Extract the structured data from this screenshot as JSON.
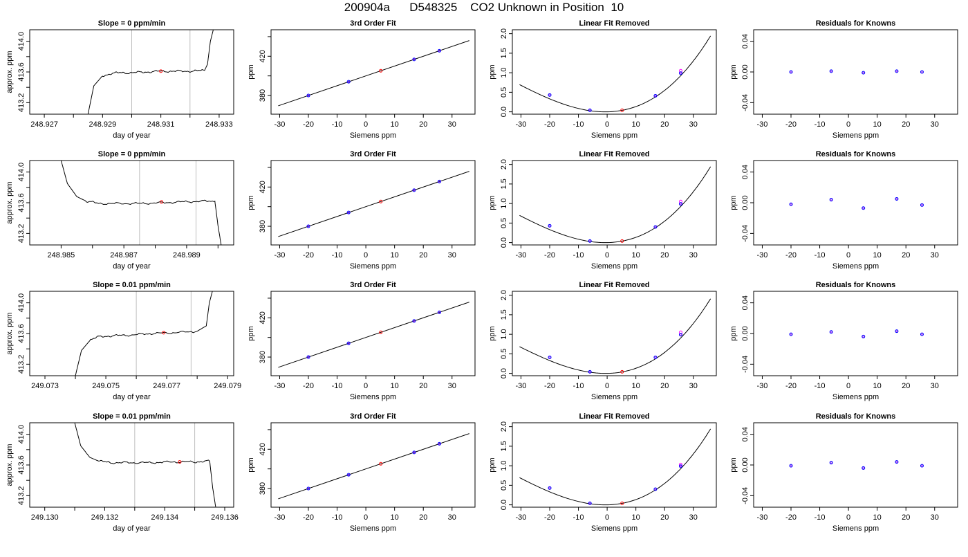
{
  "figure": {
    "suptitle": "200904a      D548325    CO2 Unknown in Position  10"
  },
  "chart_data": [
    {
      "type": "line",
      "row": 1,
      "title": "Slope =  0  ppm/min",
      "xlabel": "day of year",
      "ylabel": "approx. ppm",
      "xlim": [
        248.9265,
        248.9335
      ],
      "ylim": [
        413.05,
        414.15
      ],
      "xticks": [
        248.927,
        248.928,
        248.929,
        248.93,
        248.931,
        248.932,
        248.933
      ],
      "xtick_labels": [
        "248.927",
        "",
        "248.929",
        "",
        "248.931",
        "",
        "248.933"
      ],
      "yticks": [
        413.2,
        413.4,
        413.6,
        413.8,
        414.0
      ],
      "ytick_labels": [
        "413.2",
        "",
        "413.6",
        "",
        "414.0"
      ],
      "vlines": [
        248.93,
        248.932
      ],
      "trace_x": [
        248.9285,
        248.9287,
        248.929,
        248.9293,
        248.9296,
        248.93,
        248.9305,
        248.931,
        248.9315,
        248.932,
        248.9325,
        248.9326,
        248.9327,
        248.9328
      ],
      "trace_y": [
        413.05,
        413.42,
        413.55,
        413.58,
        413.59,
        413.59,
        413.6,
        413.61,
        413.61,
        413.61,
        413.62,
        413.7,
        414.0,
        414.15
      ],
      "marker": {
        "x": 248.931,
        "y": 413.61
      }
    },
    {
      "type": "scatter",
      "row": 1,
      "title": "3rd Order Fit",
      "xlabel": "Siemens ppm",
      "ylabel": "ppm",
      "xlim": [
        -33,
        38
      ],
      "ylim": [
        361,
        447
      ],
      "xticks": [
        -30,
        -20,
        -10,
        0,
        10,
        20,
        30
      ],
      "xtick_labels": [
        "-30",
        "-20",
        "-10",
        "0",
        "10",
        "20",
        "30"
      ],
      "yticks": [
        380,
        400,
        420,
        440
      ],
      "ytick_labels": [
        "380",
        "",
        "420",
        ""
      ],
      "fit_line": {
        "slope": 1.0,
        "intercept": 400,
        "xrange": [
          -30.5,
          36
        ]
      },
      "points_knowns": [
        {
          "x": -20,
          "y": 380
        },
        {
          "x": -6,
          "y": 394
        },
        {
          "x": 16.8,
          "y": 416.8
        },
        {
          "x": 25.6,
          "y": 425.6
        }
      ],
      "point_unknown": {
        "x": 5.2,
        "y": 405.2
      }
    },
    {
      "type": "scatter",
      "row": 1,
      "title": "Linear Fit Removed",
      "xlabel": "Siemens ppm",
      "ylabel": "ppm",
      "xlim": [
        -33,
        38
      ],
      "ylim": [
        -0.06,
        2.1
      ],
      "xticks": [
        -30,
        -20,
        -10,
        0,
        10,
        20,
        30
      ],
      "xtick_labels": [
        "-30",
        "-20",
        "-10",
        "0",
        "10",
        "20",
        "30"
      ],
      "yticks": [
        0,
        0.5,
        1.0,
        1.5,
        2.0
      ],
      "ytick_labels": [
        "0.0",
        "0.5",
        "1.0",
        "1.5",
        "2.0"
      ],
      "curve": {
        "a": 0.0011,
        "b": 0.0014,
        "c": 1e-05,
        "xrange": [
          -30.5,
          36
        ]
      },
      "points_knowns": [
        {
          "x": -20,
          "y": 0.43
        },
        {
          "x": -6,
          "y": 0.04
        },
        {
          "x": 16.8,
          "y": 0.41
        },
        {
          "x": 25.6,
          "y": 0.99
        }
      ],
      "points_pink": [
        {
          "x": 25.6,
          "y": 1.05
        }
      ],
      "point_unknown": {
        "x": 5.2,
        "y": 0.04
      }
    },
    {
      "type": "scatter",
      "row": 1,
      "title": "Residuals for Knowns",
      "xlabel": "Siemens ppm",
      "ylabel": "ppm",
      "xlim": [
        -33,
        38
      ],
      "ylim": [
        -0.055,
        0.055
      ],
      "xticks": [
        -30,
        -20,
        -10,
        0,
        10,
        20,
        30
      ],
      "xtick_labels": [
        "-30",
        "-20",
        "-10",
        "0",
        "10",
        "20",
        "30"
      ],
      "yticks": [
        -0.04,
        0,
        0.04
      ],
      "ytick_labels": [
        "-0.04",
        "0.00",
        "0.04"
      ],
      "points_knowns": [
        {
          "x": -20,
          "y": 0.0
        },
        {
          "x": -6,
          "y": 0.001
        },
        {
          "x": 5.2,
          "y": -0.001
        },
        {
          "x": 16.8,
          "y": 0.001
        },
        {
          "x": 25.6,
          "y": 0.0
        }
      ]
    },
    {
      "type": "line",
      "row": 2,
      "title": "Slope =  0  ppm/min",
      "xlabel": "day of year",
      "ylabel": "approx. ppm",
      "xlim": [
        248.984,
        248.9905
      ],
      "ylim": [
        413.05,
        414.15
      ],
      "xticks": [
        248.985,
        248.986,
        248.987,
        248.988,
        248.989,
        248.99
      ],
      "xtick_labels": [
        "248.985",
        "",
        "248.987",
        "",
        "248.989",
        ""
      ],
      "yticks": [
        413.2,
        413.4,
        413.6,
        413.8,
        414.0
      ],
      "ytick_labels": [
        "413.2",
        "",
        "413.6",
        "",
        "414.0"
      ],
      "vlines": [
        248.9875,
        248.9893
      ],
      "trace_x": [
        248.985,
        248.9852,
        248.9855,
        248.9858,
        248.9862,
        248.9868,
        248.9875,
        248.9882,
        248.9888,
        248.9895,
        248.9899,
        248.99,
        248.9901
      ],
      "trace_y": [
        414.15,
        413.85,
        413.68,
        413.62,
        413.59,
        413.59,
        413.59,
        413.6,
        413.61,
        413.62,
        413.62,
        413.3,
        413.05
      ],
      "marker": {
        "x": 248.9882,
        "y": 413.61
      }
    },
    {
      "type": "scatter",
      "row": 2,
      "title": "3rd Order Fit",
      "xlabel": "Siemens ppm",
      "ylabel": "ppm",
      "xlim": [
        -33,
        38
      ],
      "ylim": [
        361,
        447
      ],
      "xticks": [
        -30,
        -20,
        -10,
        0,
        10,
        20,
        30
      ],
      "xtick_labels": [
        "-30",
        "-20",
        "-10",
        "0",
        "10",
        "20",
        "30"
      ],
      "yticks": [
        380,
        400,
        420,
        440
      ],
      "ytick_labels": [
        "380",
        "",
        "420",
        ""
      ],
      "fit_line": {
        "slope": 1.0,
        "intercept": 400,
        "xrange": [
          -30.5,
          36
        ]
      },
      "points_knowns": [
        {
          "x": -20,
          "y": 380
        },
        {
          "x": -6,
          "y": 394
        },
        {
          "x": 16.8,
          "y": 416.8
        },
        {
          "x": 25.6,
          "y": 425.6
        }
      ],
      "point_unknown": {
        "x": 5.2,
        "y": 405.2
      }
    },
    {
      "type": "scatter",
      "row": 2,
      "title": "Linear Fit Removed",
      "xlabel": "Siemens ppm",
      "ylabel": "ppm",
      "xlim": [
        -33,
        38
      ],
      "ylim": [
        -0.06,
        2.1
      ],
      "xticks": [
        -30,
        -20,
        -10,
        0,
        10,
        20,
        30
      ],
      "xtick_labels": [
        "-30",
        "-20",
        "-10",
        "0",
        "10",
        "20",
        "30"
      ],
      "yticks": [
        0,
        0.5,
        1.0,
        1.5,
        2.0
      ],
      "ytick_labels": [
        "0.0",
        "0.5",
        "1.0",
        "1.5",
        "2.0"
      ],
      "curve": {
        "a": 0.0011,
        "b": 0.0014,
        "c": 1e-05,
        "xrange": [
          -30.5,
          36
        ]
      },
      "points_knowns": [
        {
          "x": -20,
          "y": 0.43
        },
        {
          "x": -6,
          "y": 0.04
        },
        {
          "x": 16.8,
          "y": 0.4
        },
        {
          "x": 25.6,
          "y": 0.99
        }
      ],
      "points_pink": [
        {
          "x": 25.6,
          "y": 1.05
        }
      ],
      "point_unknown": {
        "x": 5.2,
        "y": 0.04
      }
    },
    {
      "type": "scatter",
      "row": 2,
      "title": "Residuals for Knowns",
      "xlabel": "Siemens ppm",
      "ylabel": "ppm",
      "xlim": [
        -33,
        38
      ],
      "ylim": [
        -0.055,
        0.055
      ],
      "xticks": [
        -30,
        -20,
        -10,
        0,
        10,
        20,
        30
      ],
      "xtick_labels": [
        "-30",
        "-20",
        "-10",
        "0",
        "10",
        "20",
        "30"
      ],
      "yticks": [
        -0.04,
        0,
        0.04
      ],
      "ytick_labels": [
        "-0.04",
        "0.00",
        "0.04"
      ],
      "points_knowns": [
        {
          "x": -20,
          "y": -0.002
        },
        {
          "x": -6,
          "y": 0.004
        },
        {
          "x": 5.2,
          "y": -0.007
        },
        {
          "x": 16.8,
          "y": 0.005
        },
        {
          "x": 25.6,
          "y": -0.003
        }
      ]
    },
    {
      "type": "line",
      "row": 3,
      "title": "Slope =  0.01  ppm/min",
      "xlabel": "day of year",
      "ylabel": "approx. ppm",
      "xlim": [
        249.0725,
        249.0792
      ],
      "ylim": [
        413.05,
        414.15
      ],
      "xticks": [
        249.073,
        249.074,
        249.075,
        249.076,
        249.077,
        249.078,
        249.079
      ],
      "xtick_labels": [
        "249.073",
        "",
        "249.075",
        "",
        "249.077",
        "",
        "249.079"
      ],
      "yticks": [
        413.2,
        413.4,
        413.6,
        413.8,
        414.0
      ],
      "ytick_labels": [
        "413.2",
        "",
        "413.6",
        "",
        "414.0"
      ],
      "vlines": [
        249.076,
        249.0778
      ],
      "trace_x": [
        249.074,
        249.0742,
        249.0745,
        249.0748,
        249.0752,
        249.0758,
        249.0765,
        249.0772,
        249.078,
        249.0783,
        249.0784,
        249.0785
      ],
      "trace_y": [
        413.05,
        413.38,
        413.52,
        413.56,
        413.57,
        413.58,
        413.6,
        413.61,
        413.63,
        413.7,
        414.0,
        414.15
      ],
      "marker": {
        "x": 249.0769,
        "y": 413.61
      }
    },
    {
      "type": "scatter",
      "row": 3,
      "title": "3rd Order Fit",
      "xlabel": "Siemens ppm",
      "ylabel": "ppm",
      "xlim": [
        -33,
        38
      ],
      "ylim": [
        361,
        447
      ],
      "xticks": [
        -30,
        -20,
        -10,
        0,
        10,
        20,
        30
      ],
      "xtick_labels": [
        "-30",
        "-20",
        "-10",
        "0",
        "10",
        "20",
        "30"
      ],
      "yticks": [
        380,
        400,
        420,
        440
      ],
      "ytick_labels": [
        "380",
        "",
        "420",
        ""
      ],
      "fit_line": {
        "slope": 1.0,
        "intercept": 400,
        "xrange": [
          -30.5,
          36
        ]
      },
      "points_knowns": [
        {
          "x": -20,
          "y": 380
        },
        {
          "x": -6,
          "y": 394
        },
        {
          "x": 16.8,
          "y": 416.8
        },
        {
          "x": 25.6,
          "y": 425.6
        }
      ],
      "point_unknown": {
        "x": 5.2,
        "y": 405.2
      }
    },
    {
      "type": "scatter",
      "row": 3,
      "title": "Linear Fit Removed",
      "xlabel": "Siemens ppm",
      "ylabel": "ppm",
      "xlim": [
        -33,
        38
      ],
      "ylim": [
        -0.06,
        2.1
      ],
      "xticks": [
        -30,
        -20,
        -10,
        0,
        10,
        20,
        30
      ],
      "xtick_labels": [
        "-30",
        "-20",
        "-10",
        "0",
        "10",
        "20",
        "30"
      ],
      "yticks": [
        0,
        0.5,
        1.0,
        1.5,
        2.0
      ],
      "ytick_labels": [
        "0.0",
        "0.5",
        "1.0",
        "1.5",
        "2.0"
      ],
      "curve": {
        "a": 0.00108,
        "b": 0.0012,
        "c": 1e-05,
        "xrange": [
          -30.5,
          36
        ]
      },
      "points_knowns": [
        {
          "x": -20,
          "y": 0.41
        },
        {
          "x": -6,
          "y": 0.04
        },
        {
          "x": 16.8,
          "y": 0.41
        },
        {
          "x": 25.6,
          "y": 0.99
        }
      ],
      "points_pink": [
        {
          "x": 25.6,
          "y": 1.05
        }
      ],
      "point_unknown": {
        "x": 5.2,
        "y": 0.04
      }
    },
    {
      "type": "scatter",
      "row": 3,
      "title": "Residuals for Knowns",
      "xlabel": "Siemens ppm",
      "ylabel": "ppm",
      "xlim": [
        -33,
        38
      ],
      "ylim": [
        -0.055,
        0.055
      ],
      "xticks": [
        -30,
        -20,
        -10,
        0,
        10,
        20,
        30
      ],
      "xtick_labels": [
        "-30",
        "-20",
        "-10",
        "0",
        "10",
        "20",
        "30"
      ],
      "yticks": [
        -0.04,
        0,
        0.04
      ],
      "ytick_labels": [
        "-0.04",
        "0.00",
        "0.04"
      ],
      "points_knowns": [
        {
          "x": -20,
          "y": -0.001
        },
        {
          "x": -6,
          "y": 0.002
        },
        {
          "x": 5.2,
          "y": -0.004
        },
        {
          "x": 16.8,
          "y": 0.003
        },
        {
          "x": 25.6,
          "y": -0.001
        }
      ]
    },
    {
      "type": "line",
      "row": 4,
      "title": "Slope =  0.01  ppm/min",
      "xlabel": "day of year",
      "ylabel": "approx. ppm",
      "xlim": [
        249.1295,
        249.1363
      ],
      "ylim": [
        413.05,
        414.15
      ],
      "xticks": [
        249.13,
        249.131,
        249.132,
        249.133,
        249.134,
        249.135,
        249.136
      ],
      "xtick_labels": [
        "249.130",
        "",
        "249.132",
        "",
        "249.134",
        "",
        "249.136"
      ],
      "yticks": [
        413.2,
        413.4,
        413.6,
        413.8,
        414.0
      ],
      "ytick_labels": [
        "413.2",
        "",
        "413.6",
        "",
        "414.0"
      ],
      "vlines": [
        249.133,
        249.135
      ],
      "trace_x": [
        249.131,
        249.1312,
        249.1315,
        249.1318,
        249.1322,
        249.1328,
        249.1335,
        249.1342,
        249.135,
        249.1355,
        249.1356,
        249.1357
      ],
      "trace_y": [
        414.15,
        413.85,
        413.7,
        413.65,
        413.63,
        413.63,
        413.63,
        413.64,
        413.64,
        413.65,
        413.3,
        413.05
      ],
      "marker": {
        "x": 249.1345,
        "y": 413.64
      }
    },
    {
      "type": "scatter",
      "row": 4,
      "title": "3rd Order Fit",
      "xlabel": "Siemens ppm",
      "ylabel": "ppm",
      "xlim": [
        -33,
        38
      ],
      "ylim": [
        361,
        447
      ],
      "xticks": [
        -30,
        -20,
        -10,
        0,
        10,
        20,
        30
      ],
      "xtick_labels": [
        "-30",
        "-20",
        "-10",
        "0",
        "10",
        "20",
        "30"
      ],
      "yticks": [
        380,
        400,
        420,
        440
      ],
      "ytick_labels": [
        "380",
        "",
        "420",
        ""
      ],
      "fit_line": {
        "slope": 1.0,
        "intercept": 400,
        "xrange": [
          -30.5,
          36
        ]
      },
      "points_knowns": [
        {
          "x": -20,
          "y": 380
        },
        {
          "x": -6,
          "y": 394
        },
        {
          "x": 16.8,
          "y": 416.8
        },
        {
          "x": 25.6,
          "y": 425.6
        }
      ],
      "point_unknown": {
        "x": 5.2,
        "y": 405.2
      }
    },
    {
      "type": "scatter",
      "row": 4,
      "title": "Linear Fit Removed",
      "xlabel": "Siemens ppm",
      "ylabel": "ppm",
      "xlim": [
        -33,
        38
      ],
      "ylim": [
        -0.06,
        2.1
      ],
      "xticks": [
        -30,
        -20,
        -10,
        0,
        10,
        20,
        30
      ],
      "xtick_labels": [
        "-30",
        "-20",
        "-10",
        "0",
        "10",
        "20",
        "30"
      ],
      "yticks": [
        0,
        0.5,
        1.0,
        1.5,
        2.0
      ],
      "ytick_labels": [
        "0.0",
        "0.5",
        "1.0",
        "1.5",
        "2.0"
      ],
      "curve": {
        "a": 0.0011,
        "b": 0.0014,
        "c": 1e-05,
        "xrange": [
          -30.5,
          36
        ]
      },
      "points_knowns": [
        {
          "x": -20,
          "y": 0.43
        },
        {
          "x": -6,
          "y": 0.04
        },
        {
          "x": 16.8,
          "y": 0.4
        },
        {
          "x": 25.6,
          "y": 0.99
        }
      ],
      "points_pink": [
        {
          "x": 25.6,
          "y": 1.03
        }
      ],
      "point_unknown": {
        "x": 5.2,
        "y": 0.04
      }
    },
    {
      "type": "scatter",
      "row": 4,
      "title": "Residuals for Knowns",
      "xlabel": "Siemens ppm",
      "ylabel": "ppm",
      "xlim": [
        -33,
        38
      ],
      "ylim": [
        -0.055,
        0.055
      ],
      "xticks": [
        -30,
        -20,
        -10,
        0,
        10,
        20,
        30
      ],
      "xtick_labels": [
        "-30",
        "-20",
        "-10",
        "0",
        "10",
        "20",
        "30"
      ],
      "yticks": [
        -0.04,
        0,
        0.04
      ],
      "ytick_labels": [
        "-0.04",
        "0.00",
        "0.04"
      ],
      "points_knowns": [
        {
          "x": -20,
          "y": -0.001
        },
        {
          "x": -6,
          "y": 0.003
        },
        {
          "x": 5.2,
          "y": -0.004
        },
        {
          "x": 16.8,
          "y": 0.004
        },
        {
          "x": 25.6,
          "y": -0.001
        }
      ]
    }
  ],
  "colors": {
    "axis": "#000000",
    "trace": "#000000",
    "vline": "#bebebe",
    "knowns": "#0000ff",
    "knowns_inner": "#a020f0",
    "unknown": "#ff0000",
    "pink": "#ff00ff"
  }
}
